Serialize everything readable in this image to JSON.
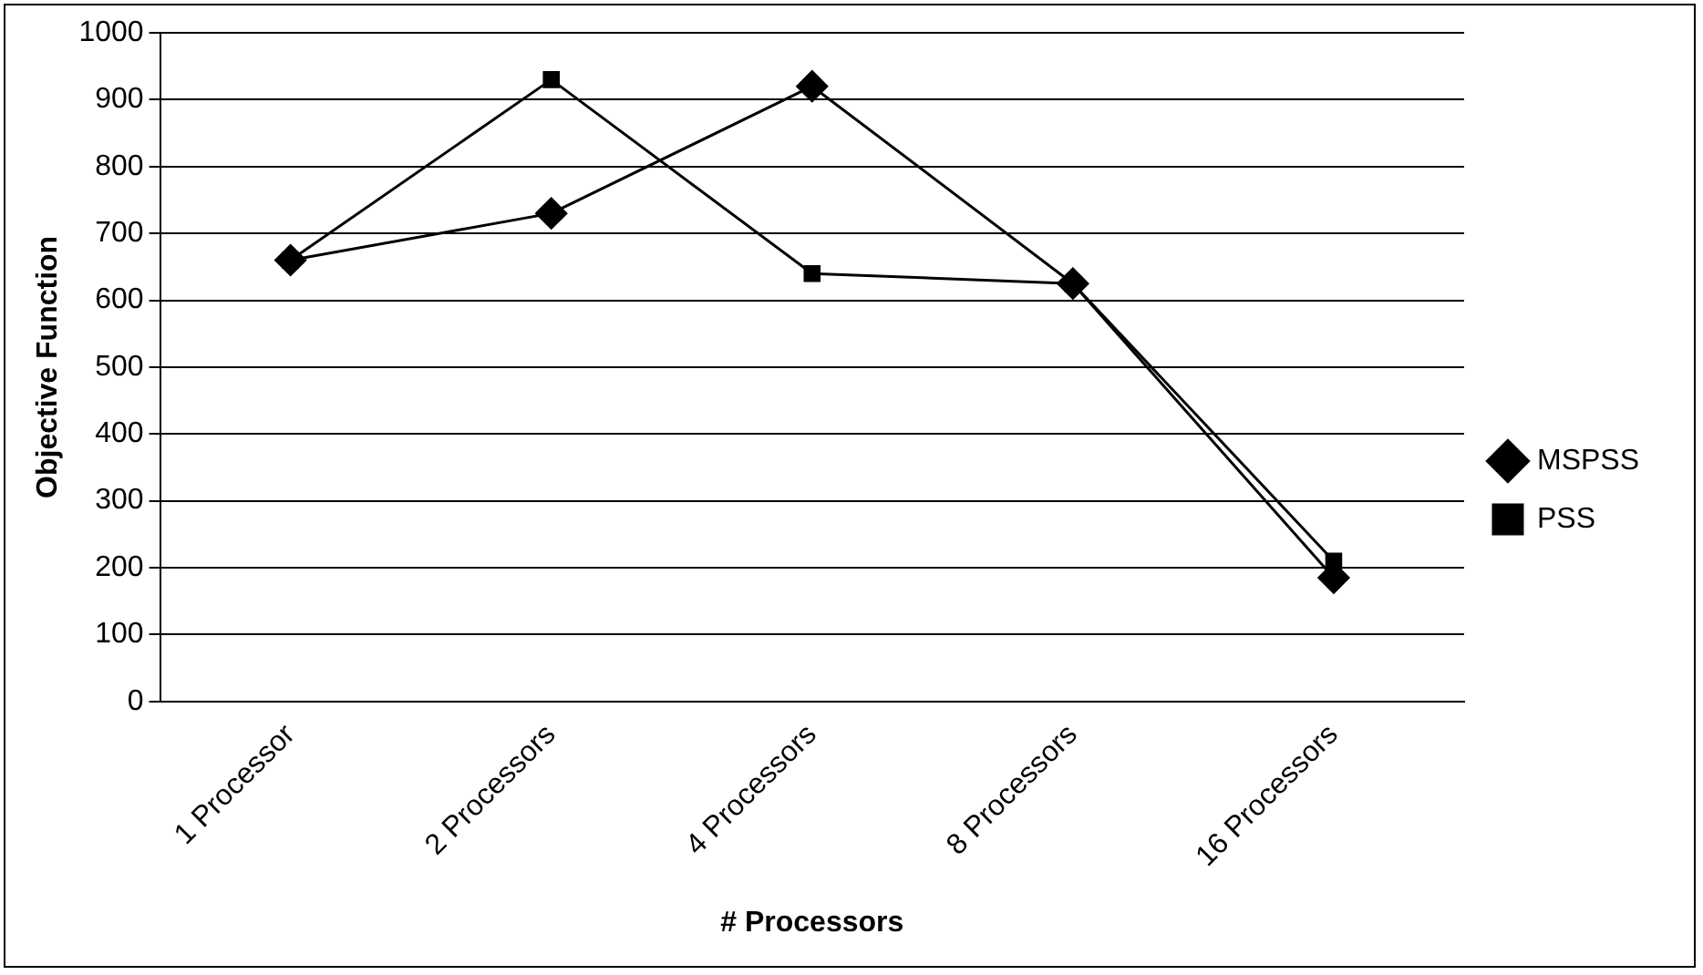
{
  "chart_data": {
    "type": "line",
    "xlabel": "# Processors",
    "ylabel": "Objective Function",
    "categories": [
      "1 Processor",
      "2 Processors",
      "4 Processors",
      "8 Processors",
      "16 Processors"
    ],
    "series": [
      {
        "name": "MSPSS",
        "color": "#000000",
        "marker": "diamond",
        "values": [
          660,
          730,
          920,
          625,
          185
        ]
      },
      {
        "name": "PSS",
        "color": "#000000",
        "marker": "square",
        "values": [
          660,
          930,
          640,
          625,
          210
        ]
      }
    ],
    "ylim": [
      0,
      1000
    ],
    "yticks": [
      0,
      100,
      200,
      300,
      400,
      500,
      600,
      700,
      800,
      900,
      1000
    ],
    "grid": "y",
    "legend": "right",
    "line_style": "solid"
  }
}
